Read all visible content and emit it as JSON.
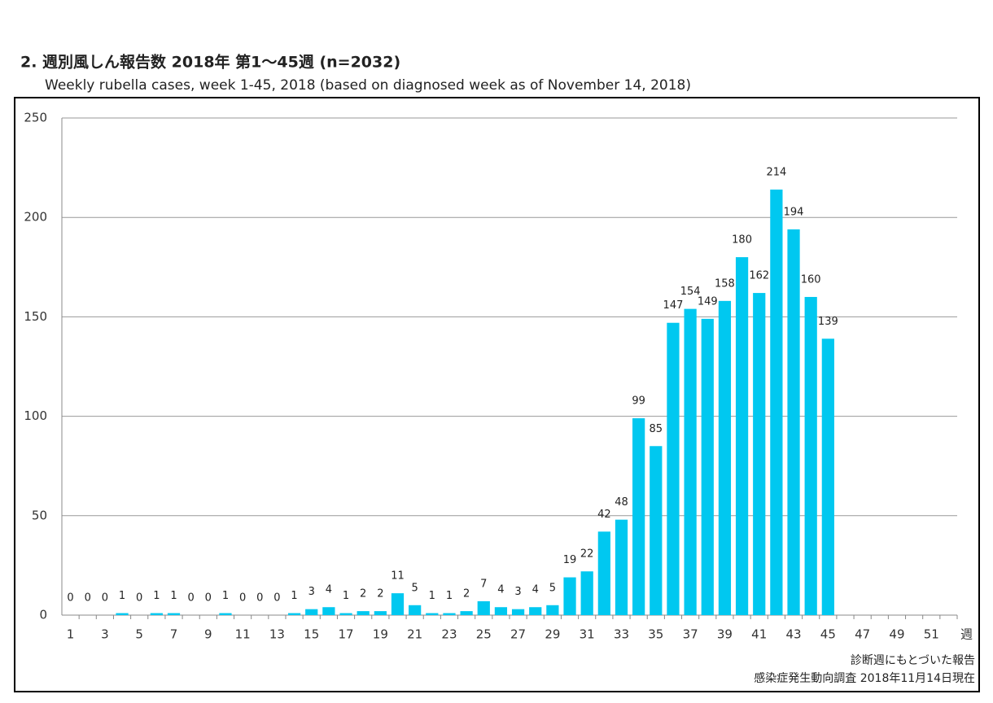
{
  "chart_data": {
    "type": "bar",
    "title": "2. 週別風しん報告数  2018年 第1～45週 (n=2032)",
    "subtitle": "Weekly rubella cases, week 1-45, 2018 (based on diagnosed week as of November 14, 2018)",
    "x_label": "週",
    "notes": [
      "診断週にもとづいた報告",
      "感染症発生動向調査 2018年11月14日現在"
    ],
    "categories": [
      "1",
      null,
      "3",
      null,
      "5",
      null,
      "7",
      null,
      "9",
      null,
      "11",
      null,
      "13",
      null,
      "15",
      null,
      "17",
      null,
      "19",
      null,
      "21",
      null,
      "23",
      null,
      "25",
      null,
      "27",
      null,
      "29",
      null,
      "31",
      null,
      "33",
      null,
      "35",
      null,
      "37",
      null,
      "39",
      null,
      "41",
      null,
      "43",
      null,
      "45",
      null,
      "47",
      null,
      "49",
      null,
      "51",
      null
    ],
    "values": [
      0,
      0,
      0,
      1,
      0,
      1,
      1,
      0,
      0,
      1,
      0,
      0,
      0,
      1,
      3,
      4,
      1,
      2,
      2,
      11,
      5,
      1,
      1,
      2,
      7,
      4,
      3,
      4,
      5,
      19,
      22,
      42,
      48,
      99,
      85,
      147,
      154,
      149,
      158,
      180,
      162,
      214,
      194,
      160,
      139,
      null,
      null,
      null,
      null,
      null,
      null,
      null
    ],
    "color": "#00c8f0",
    "ylim": [
      0,
      250
    ],
    "yticks": [
      0,
      50,
      100,
      150,
      200,
      250
    ],
    "grid": true
  }
}
